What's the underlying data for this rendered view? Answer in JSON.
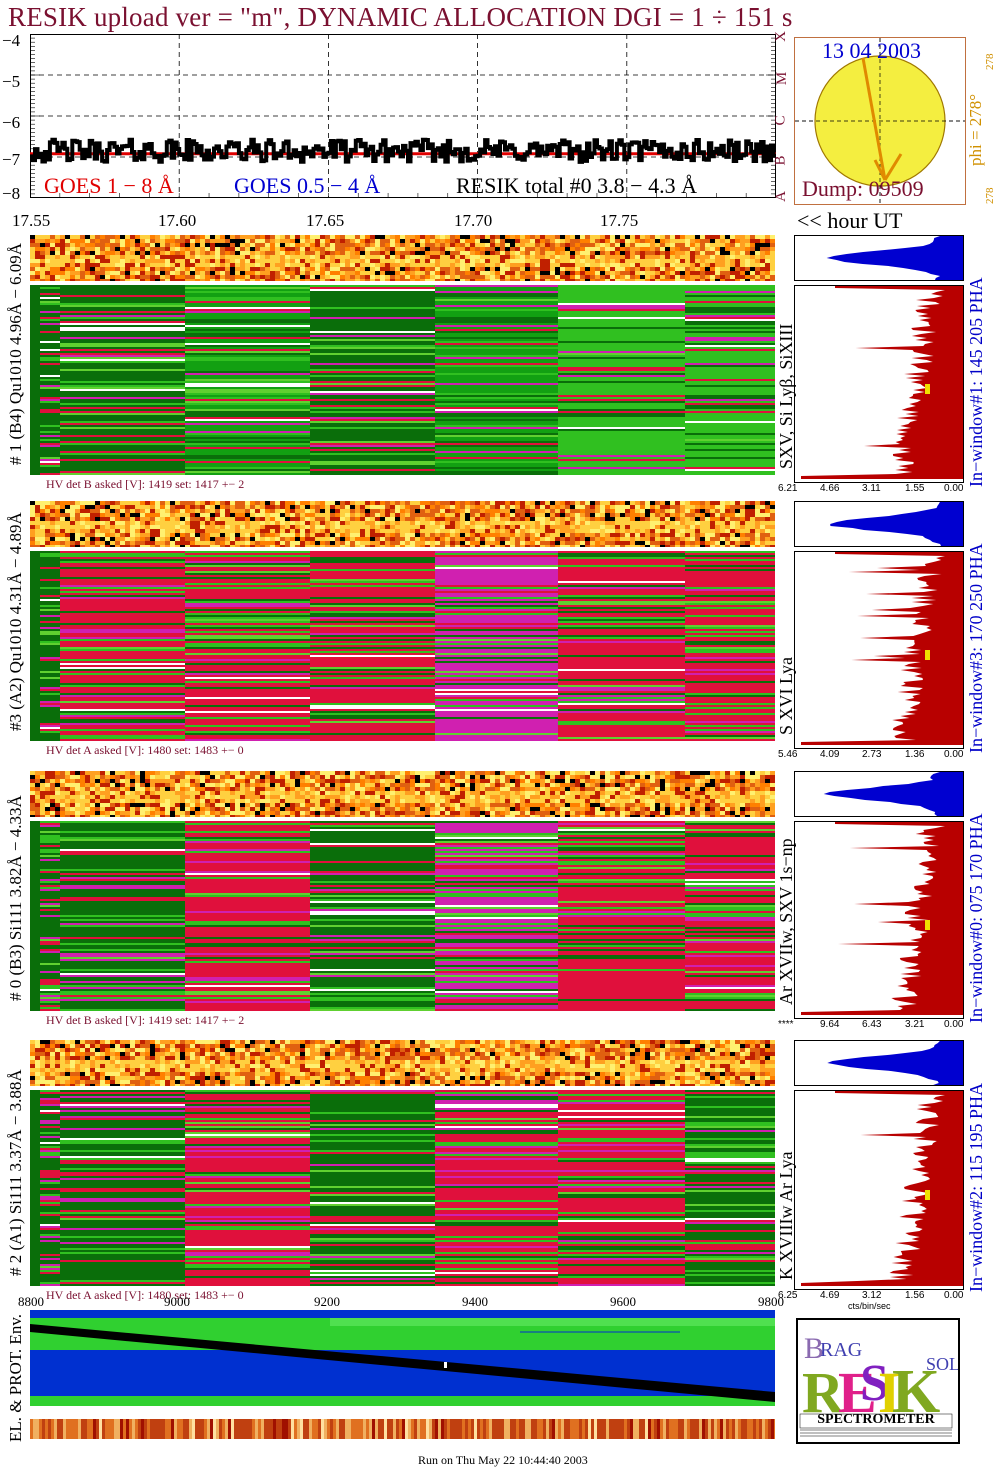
{
  "header": {
    "title": "RESIK upload ver = \"m\", DYNAMIC ALLOCATION  DGI =   1 ÷ 151 s"
  },
  "chart_data": [
    {
      "type": "line",
      "panel": "lightcurve",
      "yticks": [
        "−4",
        "−5",
        "−6",
        "−7",
        "−8"
      ],
      "ylim": [
        -8,
        -4
      ],
      "xticks": [
        "17.55",
        "17.60",
        "17.65",
        "17.70",
        "17.75"
      ],
      "xlabel_right": "<< hour UT",
      "xlim": [
        17.55,
        17.8
      ],
      "legend": [
        {
          "name": "GOES 1 − 8 Å",
          "color": "#e00000"
        },
        {
          "name": "GOES 0.5 − 4 Å",
          "color": "#0000d0"
        },
        {
          "name": "RESIK total #0  3.8 − 4.3 Å",
          "color": "#000000"
        }
      ],
      "series_level": -6.85,
      "goes_classes": [
        "X",
        "M",
        "C",
        "B",
        "A"
      ]
    },
    {
      "type": "scatter",
      "panel": "sun_position",
      "date": "13 04 2003",
      "dump": "Dump: 09509",
      "phi_label": "phi = 278°",
      "phi_small_top": "278",
      "phi_small_bottom": "278",
      "phi_deg": 278
    },
    {
      "type": "heatmap",
      "panels": [
        {
          "ylabel": "# 1 (B4) Qu1010 4.96Å − 6.09Å",
          "lines": "SXV, Si Lyβ, SiXIII",
          "window": "In−window#1:  145 205 PHA",
          "hv": "HV det B asked [V]:  1419 set:  1417 +−    2",
          "pha_ticks": [
            "6.21",
            "4.66",
            "3.11",
            "1.55",
            "0.00"
          ]
        },
        {
          "ylabel": "#3 (A2) Qu1010  4.31Å − 4.89Å",
          "lines": "S XVI Lya",
          "window": "In−window#3:  170 250 PHA",
          "hv": "HV det A asked [V]:  1480 set:  1483 +−    0",
          "pha_ticks": [
            "5.46",
            "4.09",
            "2.73",
            "1.36",
            "0.00"
          ]
        },
        {
          "ylabel": "# 0 (B3) Si111  3.82Å − 4.33Å",
          "lines": "Ar XVIIw,  SXV 1s−np",
          "window": "In−window#0:  075 170 PHA",
          "hv": "HV det B asked [V]:  1419 set:  1417 +−    2",
          "pha_ticks": [
            "****",
            "9.64",
            "6.43",
            "3.21",
            "0.00"
          ]
        },
        {
          "ylabel": "# 2 (A1) Si111  3.37Å − 3.88Å",
          "lines": "K XVIIIw  Ar Lya",
          "window": "In−window#2:  115 195 PHA",
          "hv": "HV det A asked [V]:  1480 set:  1483 +−    0",
          "pha_ticks": [
            "6.25",
            "4.69",
            "3.12",
            "1.56",
            "0.00"
          ],
          "pha_unit": "cts/bin/sec"
        }
      ]
    },
    {
      "type": "area",
      "panel": "environment",
      "ylabel": "EL. & PROT. Env.",
      "xticks": [
        "8800",
        "9000",
        "9200",
        "9400",
        "9600",
        "9800"
      ],
      "xlim": [
        8800,
        9800
      ]
    }
  ],
  "logo": {
    "name": "RESIK",
    "caption": "SPECTROMETER"
  },
  "footer": {
    "run": "Run on Thu May 22 10:44:40 2003"
  },
  "colors": {
    "title": "#7a1030",
    "goes_red": "#e00000",
    "goes_blue": "#0000d0",
    "pha_red": "#b80000",
    "pha_blue": "#0000d0",
    "heat_green": "#0a6e0a",
    "heat_red": "#e0103c",
    "heat_magenta": "#d020b0"
  }
}
